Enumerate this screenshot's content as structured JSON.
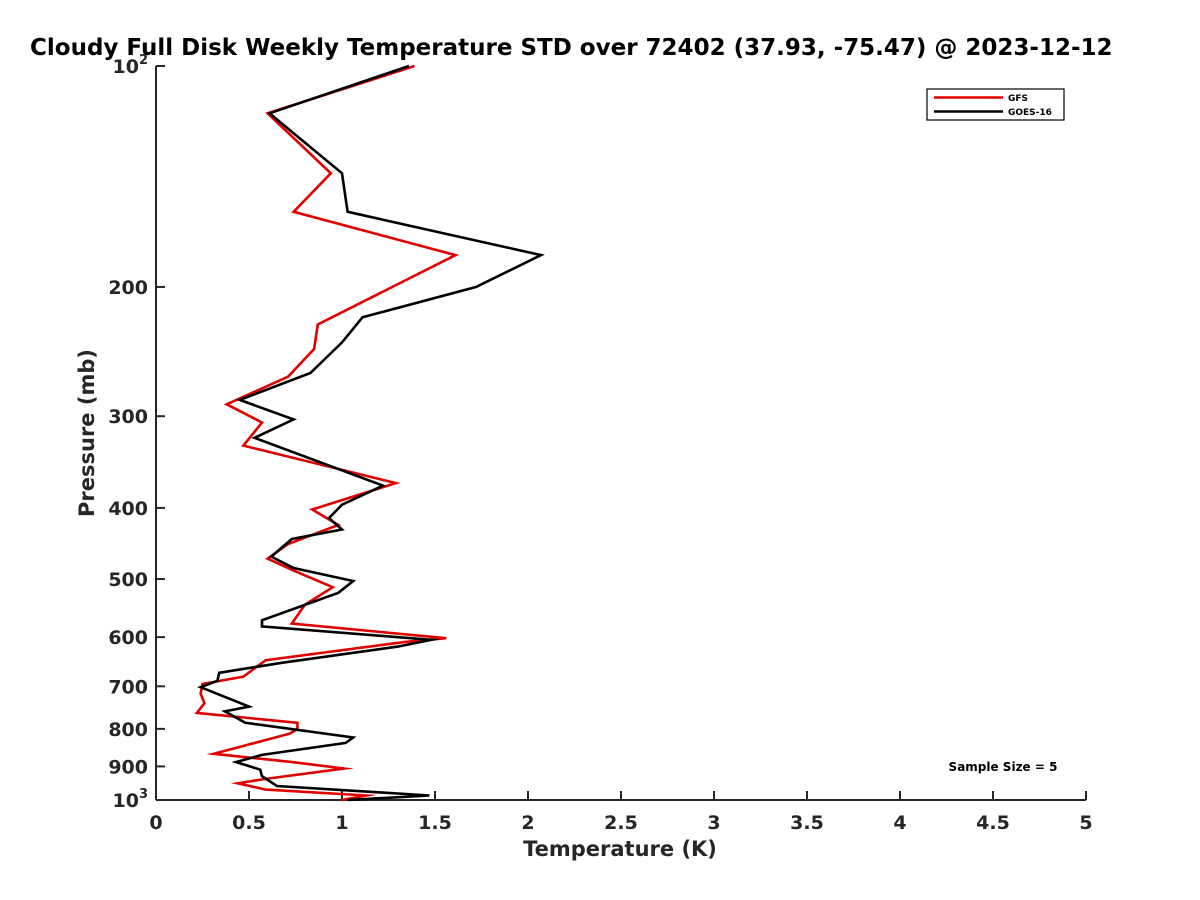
{
  "chart_data": {
    "type": "line",
    "title": "Cloudy Full Disk Weekly Temperature STD over 72402 (37.93, -75.47) @ 2023-12-12",
    "xlabel": "Temperature (K)",
    "ylabel": "Pressure (mb)",
    "xlim": [
      0,
      5
    ],
    "ylim": [
      100,
      1000
    ],
    "y_scale": "log",
    "y_reversed": true,
    "x_ticks": [
      0,
      0.5,
      1,
      1.5,
      2,
      2.5,
      3,
      3.5,
      4,
      4.5,
      5
    ],
    "x_tick_labels": [
      "0",
      "0.5",
      "1",
      "1.5",
      "2",
      "2.5",
      "3",
      "3.5",
      "4",
      "4.5",
      "5"
    ],
    "y_ticks": [
      100,
      200,
      300,
      400,
      500,
      600,
      700,
      800,
      900,
      1000
    ],
    "y_tick_labels": [
      {
        "base": "10",
        "exp": "2"
      },
      {
        "base": "200",
        "exp": ""
      },
      {
        "base": "300",
        "exp": ""
      },
      {
        "base": "400",
        "exp": ""
      },
      {
        "base": "500",
        "exp": ""
      },
      {
        "base": "600",
        "exp": ""
      },
      {
        "base": "700",
        "exp": ""
      },
      {
        "base": "800",
        "exp": ""
      },
      {
        "base": "900",
        "exp": ""
      },
      {
        "base": "10",
        "exp": "3"
      }
    ],
    "grid": false,
    "legend_position": "top-right",
    "annotation": "Sample Size = 5",
    "series": [
      {
        "name": "GFS",
        "color": "#e00000",
        "points": [
          [
            1.39,
            100
          ],
          [
            0.6,
            116
          ],
          [
            0.94,
            140
          ],
          [
            0.74,
            158
          ],
          [
            1.61,
            181
          ],
          [
            1.27,
            200
          ],
          [
            0.87,
            225
          ],
          [
            0.85,
            243
          ],
          [
            0.71,
            265
          ],
          [
            0.38,
            289
          ],
          [
            0.57,
            306
          ],
          [
            0.47,
            329
          ],
          [
            1.29,
            370
          ],
          [
            0.84,
            402
          ],
          [
            0.98,
            422
          ],
          [
            0.71,
            448
          ],
          [
            0.6,
            469
          ],
          [
            0.74,
            487
          ],
          [
            0.95,
            513
          ],
          [
            0.8,
            542
          ],
          [
            0.73,
            575
          ],
          [
            1.56,
            602
          ],
          [
            1.34,
            609
          ],
          [
            0.59,
            645
          ],
          [
            0.47,
            679
          ],
          [
            0.25,
            695
          ],
          [
            0.24,
            716
          ],
          [
            0.26,
            738
          ],
          [
            0.22,
            761
          ],
          [
            0.76,
            785
          ],
          [
            0.76,
            800
          ],
          [
            0.72,
            812
          ],
          [
            0.31,
            865
          ],
          [
            0.72,
            887
          ],
          [
            1.01,
            906
          ],
          [
            0.6,
            935
          ],
          [
            0.44,
            949
          ],
          [
            0.59,
            968
          ],
          [
            1.13,
            986
          ],
          [
            1.0,
            1000
          ]
        ]
      },
      {
        "name": "GOES-16",
        "color": "#000000",
        "points": [
          [
            1.36,
            100
          ],
          [
            0.61,
            116
          ],
          [
            1.0,
            140
          ],
          [
            1.03,
            158
          ],
          [
            2.07,
            181
          ],
          [
            1.72,
            200
          ],
          [
            1.11,
            220
          ],
          [
            1.0,
            238
          ],
          [
            0.83,
            262
          ],
          [
            0.45,
            285
          ],
          [
            0.74,
            303
          ],
          [
            0.53,
            321
          ],
          [
            1.22,
            373
          ],
          [
            1.0,
            396
          ],
          [
            0.93,
            413
          ],
          [
            1.0,
            428
          ],
          [
            0.73,
            441
          ],
          [
            0.62,
            466
          ],
          [
            0.74,
            483
          ],
          [
            1.06,
            503
          ],
          [
            0.98,
            522
          ],
          [
            0.57,
            569
          ],
          [
            0.57,
            580
          ],
          [
            1.48,
            605
          ],
          [
            1.3,
            618
          ],
          [
            0.68,
            650
          ],
          [
            0.34,
            671
          ],
          [
            0.33,
            688
          ],
          [
            0.24,
            702
          ],
          [
            0.5,
            746
          ],
          [
            0.37,
            757
          ],
          [
            0.48,
            785
          ],
          [
            1.06,
            822
          ],
          [
            1.02,
            836
          ],
          [
            0.57,
            868
          ],
          [
            0.43,
            888
          ],
          [
            0.56,
            909
          ],
          [
            0.57,
            928
          ],
          [
            0.65,
            957
          ],
          [
            1.47,
            986
          ],
          [
            1.03,
            1000
          ]
        ]
      }
    ]
  }
}
